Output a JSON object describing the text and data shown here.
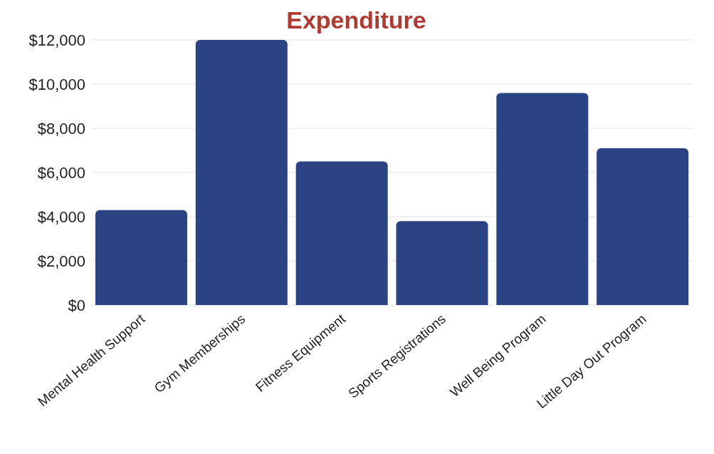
{
  "chart_data": {
    "type": "bar",
    "title": "Expenditure",
    "categories": [
      "Mental Health Support",
      "Gym Memberships",
      "Fitness Equipment",
      "Sports Registrations",
      "Well Being Program",
      "Little Day Out Program"
    ],
    "values": [
      4300,
      12000,
      6500,
      3800,
      9600,
      7100
    ],
    "color": "#2b4283",
    "ylim": [
      0,
      12000
    ],
    "yticks": [
      {
        "value": 0,
        "label": "$0"
      },
      {
        "value": 2000,
        "label": "$2,000"
      },
      {
        "value": 4000,
        "label": "$4,000"
      },
      {
        "value": 6000,
        "label": "$6,000"
      },
      {
        "value": 8000,
        "label": "$8,000"
      },
      {
        "value": 10000,
        "label": "$10,000"
      },
      {
        "value": 12000,
        "label": "$12,000"
      }
    ],
    "grid": "y"
  }
}
